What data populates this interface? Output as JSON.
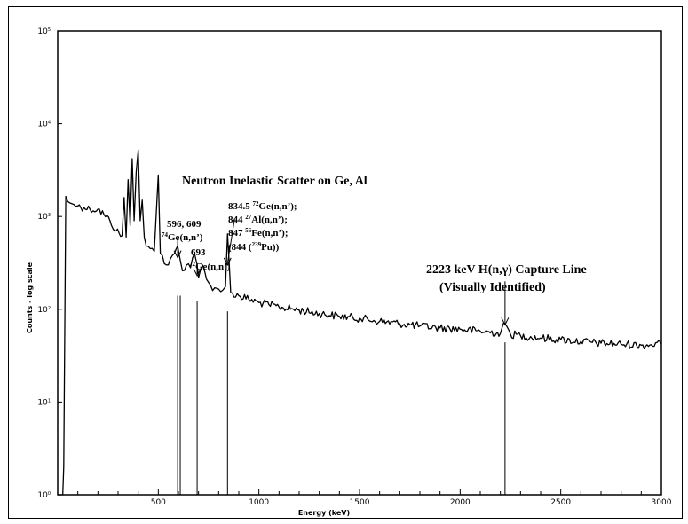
{
  "chart_data": {
    "type": "line",
    "title": "",
    "xlabel": "Energy (keV)",
    "ylabel": "Counts - log scale",
    "xlim": [
      0,
      3000
    ],
    "ylim": [
      1,
      100000
    ],
    "y_scale": "log",
    "grid": false,
    "x_ticks": [
      {
        "value": 500,
        "label": "500"
      },
      {
        "value": 1000,
        "label": "1000"
      },
      {
        "value": 1500,
        "label": "1500"
      },
      {
        "value": 2000,
        "label": "2000"
      },
      {
        "value": 2500,
        "label": "2500"
      },
      {
        "value": 3000,
        "label": "3000"
      }
    ],
    "y_ticks": [
      {
        "value": 1,
        "base": "10",
        "exp": "0"
      },
      {
        "value": 10,
        "base": "10",
        "exp": "1"
      },
      {
        "value": 100,
        "base": "10",
        "exp": "2"
      },
      {
        "value": 1000,
        "base": "10",
        "exp": "3"
      },
      {
        "value": 10000,
        "base": "10",
        "exp": "4"
      },
      {
        "value": 100000,
        "base": "10",
        "exp": "5"
      }
    ],
    "series": [
      {
        "name": "",
        "x": [
          0,
          25,
          30,
          40,
          50,
          60,
          80,
          100,
          130,
          160,
          200,
          230,
          260,
          290,
          320,
          330,
          340,
          350,
          360,
          370,
          380,
          390,
          400,
          410,
          420,
          430,
          440,
          460,
          480,
          500,
          510,
          520,
          540,
          560,
          580,
          596,
          609,
          620,
          640,
          660,
          680,
          693,
          700,
          720,
          740,
          760,
          780,
          800,
          820,
          834,
          844,
          860,
          900,
          950,
          1000,
          1050,
          1100,
          1200,
          1300,
          1400,
          1500,
          1600,
          1700,
          1800,
          1900,
          2000,
          2100,
          2200,
          2223,
          2250,
          2300,
          2400,
          2500,
          2600,
          2700,
          2800,
          2900,
          3000
        ],
        "y": [
          1,
          1,
          2,
          1650,
          1450,
          1400,
          1350,
          1300,
          1250,
          1200,
          1200,
          1050,
          900,
          700,
          620,
          1600,
          600,
          2500,
          800,
          4200,
          900,
          3000,
          5200,
          900,
          1500,
          600,
          480,
          450,
          420,
          2800,
          400,
          380,
          300,
          350,
          400,
          480,
          340,
          260,
          300,
          280,
          400,
          300,
          220,
          300,
          210,
          180,
          170,
          165,
          160,
          175,
          650,
          150,
          140,
          128,
          118,
          112,
          106,
          98,
          90,
          84,
          80,
          74,
          70,
          66,
          63,
          61,
          58,
          55,
          70,
          54,
          52,
          49,
          47,
          45,
          43,
          42,
          41,
          42
        ]
      }
    ],
    "markers": [
      {
        "x": 596,
        "y_top": 140
      },
      {
        "x": 609,
        "y_top": 140
      },
      {
        "x": 693,
        "y_top": 122
      },
      {
        "x": 844,
        "y_top": 95
      },
      {
        "x": 2223,
        "y_top": 44
      }
    ],
    "arrows": [
      {
        "x": 596,
        "y_from": 560,
        "y_to": 360
      },
      {
        "x": 693,
        "y_from": 310,
        "y_to": 230
      },
      {
        "x": 844,
        "y_from": 950,
        "y_to": 300
      },
      {
        "x": 2223,
        "y_from": 200,
        "y_to": 68
      }
    ],
    "annotations": {
      "main": "Neutron Inelastic Scatter on Ge, Al",
      "ge74_energies": "596, 609",
      "ge74_sup": "74",
      "ge74_reaction": "Ge(n,n’)",
      "ge72_energy": "693",
      "ge72_sup": "72",
      "ge72_reaction": "Ge(n,n’)",
      "l834_energy": "834.5 ",
      "l834_sup": "72",
      "l834_reaction": "Ge(n,n’);",
      "l844_energy": "844 ",
      "l844_sup": "27",
      "l844_reaction": "Al(n,n’);",
      "l847_energy": "847 ",
      "l847_sup": "56",
      "l847_reaction": "Fe(n,n’);",
      "l844pu_open": "(844 (",
      "l844pu_sup": "239",
      "l844pu_close": "Pu))",
      "capture_line": "2223 keV H(n,γ) Capture Line",
      "capture_note": "(Visually Identified)"
    }
  }
}
